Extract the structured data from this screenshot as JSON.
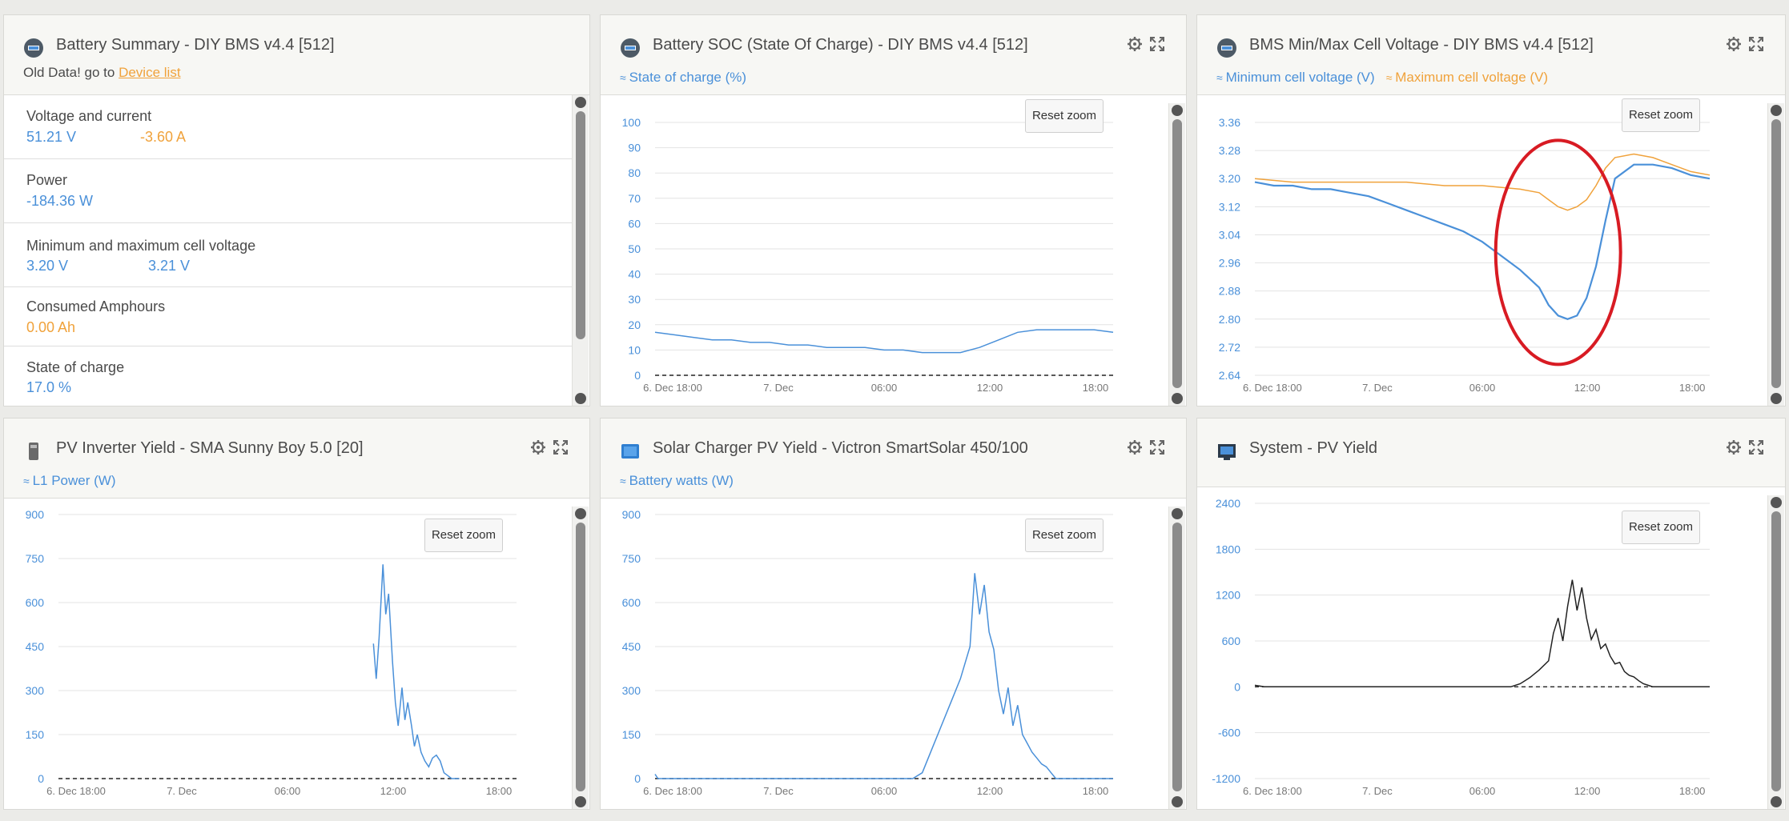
{
  "summary": {
    "title": "Battery Summary - DIY BMS v4.4 [512]",
    "warning_prefix": "Old Data! go to",
    "warning_link": "Device list",
    "rows": [
      {
        "label": "Voltage and current",
        "v1": "51.21 V",
        "v2": "-3.60 A"
      },
      {
        "label": "Power",
        "v1": "-184.36 W",
        "v2": ""
      },
      {
        "label": "Minimum and maximum cell voltage",
        "v1": "3.20 V",
        "v2": "3.21 V"
      },
      {
        "label": "Consumed Amphours",
        "v1": "0.00 Ah",
        "v2": ""
      },
      {
        "label": "State of charge",
        "v1": "17.0 %",
        "v2": ""
      }
    ]
  },
  "reset_zoom_label": "Reset zoom",
  "x_tick_labels": [
    "6. Dec 18:00",
    "7. Dec",
    "06:00",
    "12:00",
    "18:00"
  ],
  "colors": {
    "blue": "#4a90d9",
    "orange": "#f0a23b",
    "black": "#222222"
  },
  "charts": [
    {
      "title": "Battery SOC (State Of Charge) - DIY BMS v4.4 [512]",
      "icon": "battery-monitor-icon",
      "legend": [
        {
          "name": "State of charge (%)",
          "color": "#4a90d9"
        }
      ],
      "chart_data": {
        "type": "line",
        "yticks": [
          0,
          10,
          20,
          30,
          40,
          50,
          60,
          70,
          80,
          90,
          100
        ],
        "ylim": [
          0,
          100
        ],
        "xlim": [
          0,
          48
        ],
        "series": [
          {
            "name": "State of charge (%)",
            "color": "#4a90d9",
            "x": [
              0,
              2,
              4,
              6,
              8,
              10,
              12,
              14,
              16,
              18,
              20,
              22,
              24,
              26,
              28,
              30,
              32,
              34,
              36,
              38,
              40,
              42,
              44,
              46,
              48
            ],
            "y": [
              17,
              16,
              15,
              14,
              14,
              13,
              13,
              12,
              12,
              11,
              11,
              11,
              10,
              10,
              9,
              9,
              9,
              11,
              14,
              17,
              18,
              18,
              18,
              18,
              17
            ]
          }
        ],
        "reference_line": 0
      }
    },
    {
      "title": "BMS Min/Max Cell Voltage - DIY BMS v4.4 [512]",
      "icon": "battery-monitor-icon",
      "legend": [
        {
          "name": "Minimum cell voltage (V)",
          "color": "#4a90d9"
        },
        {
          "name": "Maximum cell voltage (V)",
          "color": "#f0a23b"
        }
      ],
      "chart_data": {
        "type": "line",
        "yticks": [
          2.64,
          2.72,
          2.8,
          2.88,
          2.96,
          3.04,
          3.12,
          3.2,
          3.28,
          3.36
        ],
        "ylim": [
          2.64,
          3.36
        ],
        "xlim": [
          0,
          48
        ],
        "series": [
          {
            "name": "Minimum cell voltage (V)",
            "color": "#4a90d9",
            "x": [
              0,
              2,
              4,
              6,
              8,
              10,
              12,
              14,
              16,
              18,
              20,
              22,
              24,
              26,
              28,
              30,
              31,
              32,
              33,
              34,
              35,
              36,
              37,
              38,
              40,
              42,
              44,
              46,
              48
            ],
            "y": [
              3.19,
              3.18,
              3.18,
              3.17,
              3.17,
              3.16,
              3.15,
              3.13,
              3.11,
              3.09,
              3.07,
              3.05,
              3.02,
              2.98,
              2.94,
              2.89,
              2.84,
              2.81,
              2.8,
              2.81,
              2.86,
              2.95,
              3.08,
              3.2,
              3.24,
              3.24,
              3.23,
              3.21,
              3.2
            ]
          },
          {
            "name": "Maximum cell voltage (V)",
            "color": "#f0a23b",
            "x": [
              0,
              4,
              8,
              12,
              16,
              20,
              24,
              28,
              30,
              31,
              32,
              33,
              34,
              35,
              36,
              37,
              38,
              40,
              42,
              44,
              46,
              48
            ],
            "y": [
              3.2,
              3.19,
              3.19,
              3.19,
              3.19,
              3.18,
              3.18,
              3.17,
              3.16,
              3.14,
              3.12,
              3.11,
              3.12,
              3.14,
              3.18,
              3.23,
              3.26,
              3.27,
              3.26,
              3.24,
              3.22,
              3.21
            ]
          }
        ],
        "highlight_ellipse": true
      }
    },
    {
      "title": "PV Inverter Yield - SMA Sunny Boy 5.0 [20]",
      "icon": "inverter-icon",
      "legend": [
        {
          "name": "L1 Power (W)",
          "color": "#4a90d9"
        }
      ],
      "chart_data": {
        "type": "line",
        "yticks": [
          0,
          150,
          300,
          450,
          600,
          750,
          900
        ],
        "ylim": [
          0,
          900
        ],
        "xlim": [
          0,
          48
        ],
        "series": [
          {
            "name": "L1 Power (W)",
            "color": "#4a90d9",
            "x": [
              33,
              33.3,
              33.6,
              34,
              34.3,
              34.6,
              35,
              35.3,
              35.6,
              36,
              36.3,
              36.6,
              37,
              37.3,
              37.6,
              38,
              38.4,
              38.8,
              39.2,
              39.6,
              40,
              40.4,
              40.8,
              41.2,
              41.6,
              42
            ],
            "y": [
              460,
              340,
              480,
              730,
              560,
              630,
              400,
              260,
              180,
              310,
              200,
              260,
              180,
              110,
              150,
              90,
              60,
              40,
              70,
              80,
              60,
              20,
              10,
              0,
              0,
              0
            ]
          }
        ],
        "reference_line": 0
      }
    },
    {
      "title": "Solar Charger PV Yield - Victron SmartSolar 450/100",
      "icon": "solar-charger-icon",
      "legend": [
        {
          "name": "Battery watts (W)",
          "color": "#4a90d9"
        }
      ],
      "chart_data": {
        "type": "line",
        "yticks": [
          0,
          150,
          300,
          450,
          600,
          750,
          900
        ],
        "ylim": [
          0,
          900
        ],
        "xlim": [
          0,
          48
        ],
        "series": [
          {
            "name": "Battery watts (W)",
            "color": "#4a90d9",
            "x": [
              0,
              0.3,
              0.6,
              27,
              28,
              29,
              30,
              31,
              32,
              33,
              33.5,
              34,
              34.5,
              35,
              35.5,
              36,
              36.5,
              37,
              37.5,
              38,
              38.5,
              39,
              39.5,
              40,
              40.5,
              41,
              41.5,
              42,
              42.5,
              43,
              48
            ],
            "y": [
              15,
              0,
              0,
              0,
              20,
              100,
              180,
              260,
              340,
              450,
              700,
              560,
              660,
              500,
              440,
              300,
              220,
              310,
              180,
              250,
              150,
              120,
              90,
              70,
              50,
              40,
              20,
              0,
              0,
              0,
              0
            ]
          }
        ],
        "reference_line": 0
      }
    },
    {
      "title": "System - PV Yield",
      "icon": "system-icon",
      "legend": [],
      "chart_data": {
        "type": "line",
        "yticks": [
          -1200,
          -600,
          0,
          600,
          1200,
          1800,
          2400
        ],
        "ylim": [
          -1200,
          2400
        ],
        "xlim": [
          0,
          48
        ],
        "series": [
          {
            "name": "",
            "color": "#222222",
            "x": [
              0,
              1,
              2,
              27,
              28,
              29,
              30,
              31,
              31.5,
              32,
              32.5,
              33,
              33.5,
              34,
              34.5,
              35,
              35.5,
              36,
              36.5,
              37,
              37.5,
              38,
              38.5,
              39,
              39.5,
              40,
              40.5,
              41,
              41.5,
              42,
              43,
              44,
              48
            ],
            "y": [
              20,
              0,
              0,
              0,
              40,
              120,
              220,
              340,
              700,
              900,
              600,
              1050,
              1400,
              1000,
              1300,
              900,
              620,
              750,
              500,
              560,
              400,
              300,
              320,
              200,
              150,
              130,
              80,
              40,
              20,
              0,
              0,
              0,
              0
            ]
          }
        ],
        "reference_line": 0
      }
    }
  ]
}
